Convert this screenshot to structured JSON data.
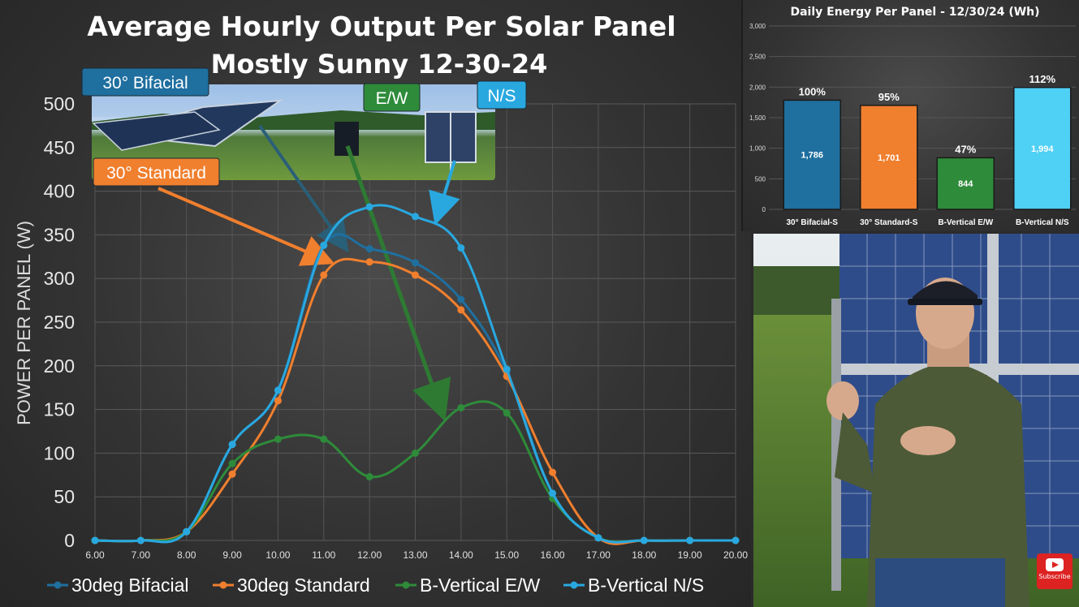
{
  "chart_data": [
    {
      "type": "line",
      "title": "Average Hourly Output Per Solar Panel",
      "subtitle": "Mostly Sunny 12-30-24",
      "xlabel": "",
      "ylabel": "POWER PER PANEL (W)",
      "x": [
        "6.00",
        "7.00",
        "8.00",
        "9.00",
        "10.00",
        "11.00",
        "12.00",
        "13.00",
        "14.00",
        "15.00",
        "16.00",
        "17.00",
        "18.00",
        "19.00",
        "20.00"
      ],
      "ylim": [
        0,
        500
      ],
      "yticks": [
        "0",
        "50",
        "100",
        "150",
        "200",
        "250",
        "300",
        "350",
        "400",
        "450",
        "500"
      ],
      "grid": true,
      "legend_position": "bottom",
      "series": [
        {
          "name": "30deg Bifacial",
          "color": "#1f6f9f",
          "values": [
            0,
            0,
            10,
            110,
            172,
            338,
            334,
            318,
            276,
            193,
            54,
            3,
            0,
            0,
            0
          ]
        },
        {
          "name": "30deg Standard",
          "color": "#f07f2e",
          "values": [
            0,
            0,
            10,
            76,
            160,
            304,
            319,
            304,
            264,
            188,
            78,
            3,
            0,
            0,
            0
          ]
        },
        {
          "name": "B-Vertical E/W",
          "color": "#2e8b3a",
          "values": [
            0,
            0,
            10,
            88,
            116,
            116,
            73,
            100,
            152,
            146,
            48,
            3,
            0,
            0,
            0
          ]
        },
        {
          "name": "B-Vertical N/S",
          "color": "#29a8e0",
          "values": [
            0,
            0,
            10,
            110,
            172,
            338,
            382,
            371,
            335,
            196,
            54,
            3,
            0,
            0,
            0
          ]
        }
      ],
      "callouts": [
        {
          "label": "30° Bifacial",
          "color": "#1f6f9f"
        },
        {
          "label": "30° Standard",
          "color": "#f07f2e"
        },
        {
          "label": "E/W",
          "color": "#2e8b3a"
        },
        {
          "label": "N/S",
          "color": "#29a8e0"
        }
      ]
    },
    {
      "type": "bar",
      "title": "Daily Energy Per Panel - 12/30/24 (Wh)",
      "categories": [
        "30° Bifacial-S",
        "30° Standard-S",
        "B-Vertical E/W",
        "B-Vertical N/S"
      ],
      "values": [
        1786,
        1701,
        844,
        1994
      ],
      "value_labels": [
        "1,786",
        "1,701",
        "844",
        "1,994"
      ],
      "percent_labels": [
        "100%",
        "95%",
        "47%",
        "112%"
      ],
      "colors": [
        "#1f6f9f",
        "#f07f2e",
        "#2e8b3a",
        "#4fd0f5"
      ],
      "ylim": [
        0,
        3000
      ],
      "yticks": [
        "0",
        "500",
        "1,000",
        "1,500",
        "2,000",
        "2,500",
        "3,000"
      ],
      "grid": true
    }
  ],
  "video": {
    "subscribe_label": "Subscribe"
  }
}
